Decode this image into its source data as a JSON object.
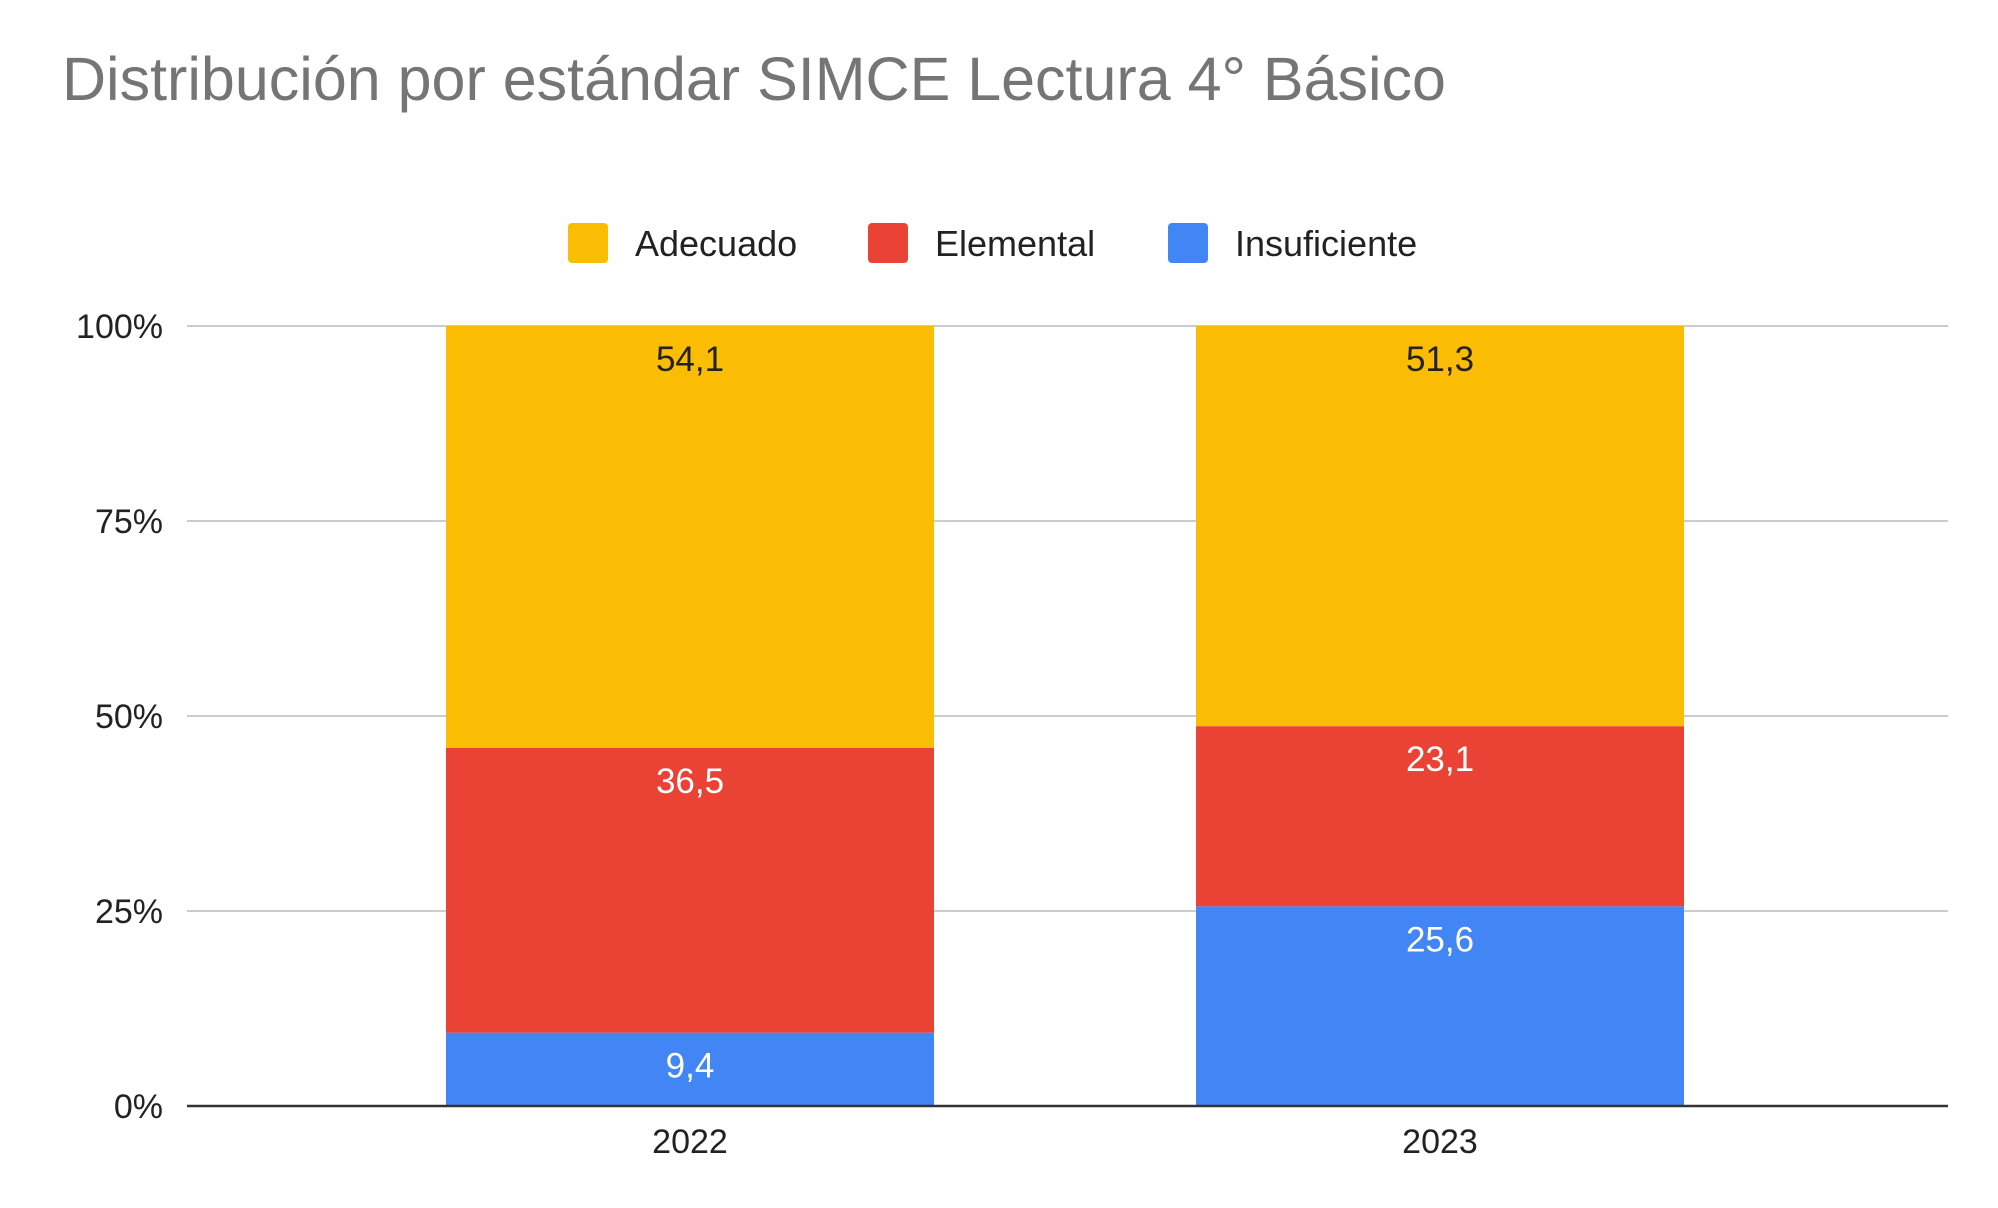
{
  "chart_data": {
    "type": "bar",
    "stacked": true,
    "title": "Distribución por estándar SIMCE Lectura 4° Básico",
    "xlabel": "",
    "ylabel": "",
    "categories": [
      "2022",
      "2023"
    ],
    "series": [
      {
        "name": "Insuficiente",
        "values": [
          9.4,
          25.6
        ],
        "labels": [
          "9,4",
          "25,6"
        ],
        "color": "#4285f4",
        "label_color": "#ffffff"
      },
      {
        "name": "Elemental",
        "values": [
          36.5,
          23.1
        ],
        "labels": [
          "36,5",
          "23,1"
        ],
        "color": "#ea4335",
        "label_color": "#ffffff"
      },
      {
        "name": "Adecuado",
        "values": [
          54.1,
          51.3
        ],
        "labels": [
          "54,1",
          "51,3"
        ],
        "color": "#fbbc04",
        "label_color": "#222222"
      }
    ],
    "legend_order": [
      "Adecuado",
      "Elemental",
      "Insuficiente"
    ],
    "legend_position": "top",
    "ylim": [
      0,
      100
    ],
    "yticks": [
      {
        "value": 0,
        "label": "0%"
      },
      {
        "value": 25,
        "label": "25%"
      },
      {
        "value": 50,
        "label": "50%"
      },
      {
        "value": 75,
        "label": "75%"
      },
      {
        "value": 100,
        "label": "100%"
      }
    ],
    "grid": true,
    "colors": {
      "gridline": "#cccccc",
      "axis": "#333333",
      "title": "#757575",
      "text": "#222222"
    }
  }
}
